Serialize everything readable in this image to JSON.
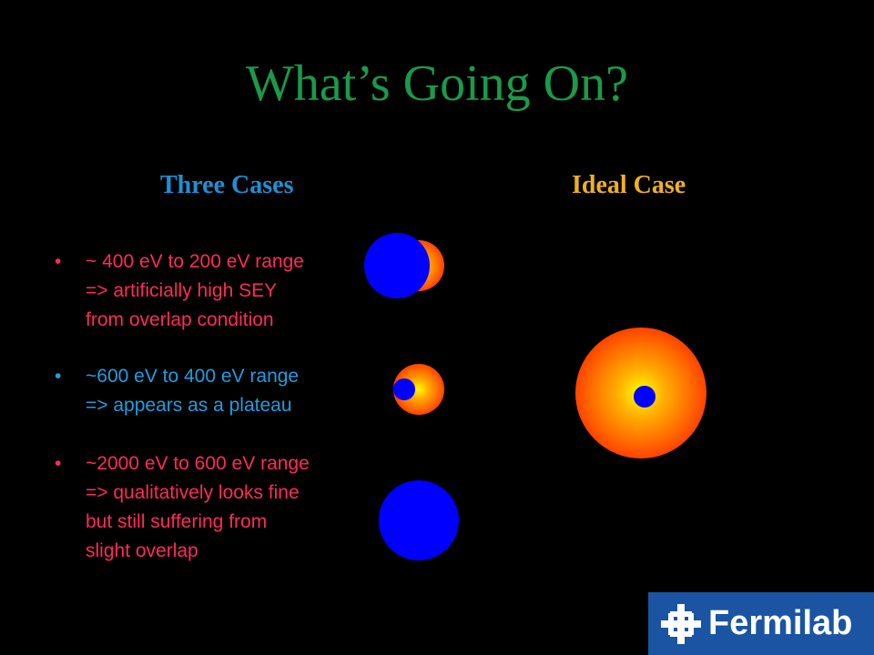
{
  "slide": {
    "title": "What’s Going On?",
    "left_heading": "Three Cases",
    "right_heading": "Ideal Case",
    "colors": {
      "title": "#1a9a4a",
      "left_heading": "#1e90d6",
      "right_heading": "#f0b020",
      "bullet_red": "#ff2a5a",
      "bullet_blue": "#1e9ee0",
      "beam_blue": "#0000ff"
    },
    "bullets": [
      {
        "text_line1": "~ 400 eV to 200 eV range",
        "text_line2": "=> artificially high SEY",
        "text_line3": "from overlap condition",
        "color": "#ff2a5a"
      },
      {
        "text_line1": "~600 eV to 400 eV range",
        "text_line2": "=> appears as a plateau",
        "text_line3": "",
        "color": "#1e9ee0"
      },
      {
        "text_line1": "~2000 eV to 600 eV range",
        "text_line2": "=> qualitatively looks fine",
        "text_line3": "but still suffering from",
        "text_line4": "slight overlap",
        "color": "#ff2a5a"
      }
    ],
    "logo": {
      "text": "Fermilab",
      "icon": "fermilab-logo-icon"
    }
  }
}
